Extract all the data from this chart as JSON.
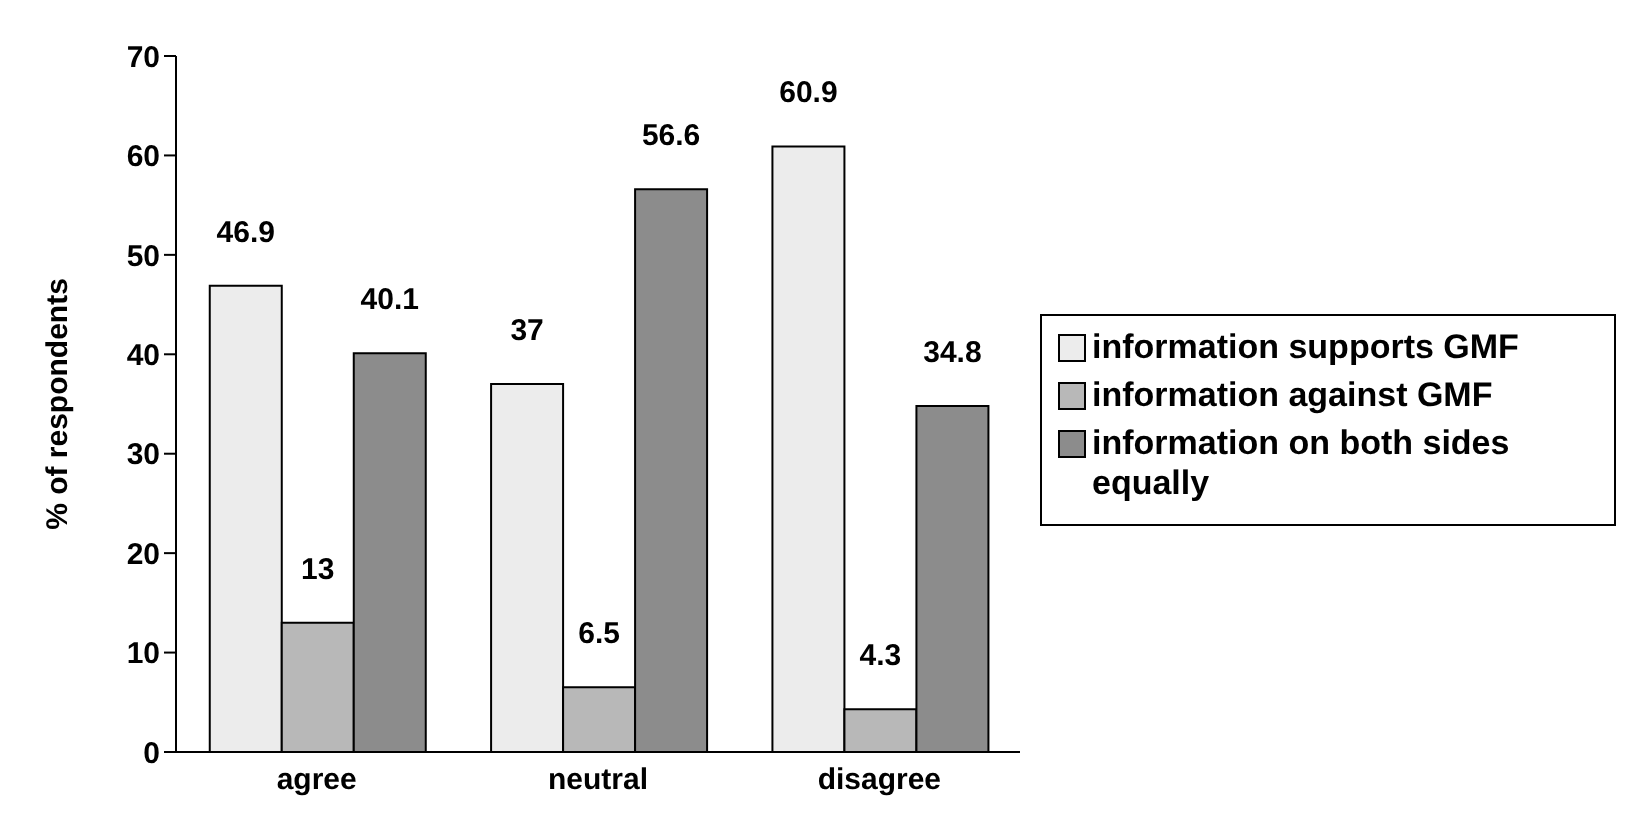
{
  "chart_data": {
    "type": "bar",
    "ylabel": "% of respondents",
    "categories": [
      "agree",
      "neutral",
      "disagree"
    ],
    "series": [
      {
        "name": "information supports GMF",
        "color": "#ececec",
        "values": [
          46.9,
          37,
          60.9
        ]
      },
      {
        "name": "information against GMF",
        "color": "#b8b8b8",
        "values": [
          13,
          6.5,
          4.3
        ]
      },
      {
        "name": "information on both sides equally",
        "color": "#8c8c8c",
        "values": [
          40.1,
          56.6,
          34.8
        ]
      }
    ],
    "ylim": [
      0,
      70
    ],
    "yticks": [
      0,
      10,
      20,
      30,
      40,
      50,
      60,
      70
    ],
    "grid": false,
    "legend": "right",
    "data_labels": true
  }
}
